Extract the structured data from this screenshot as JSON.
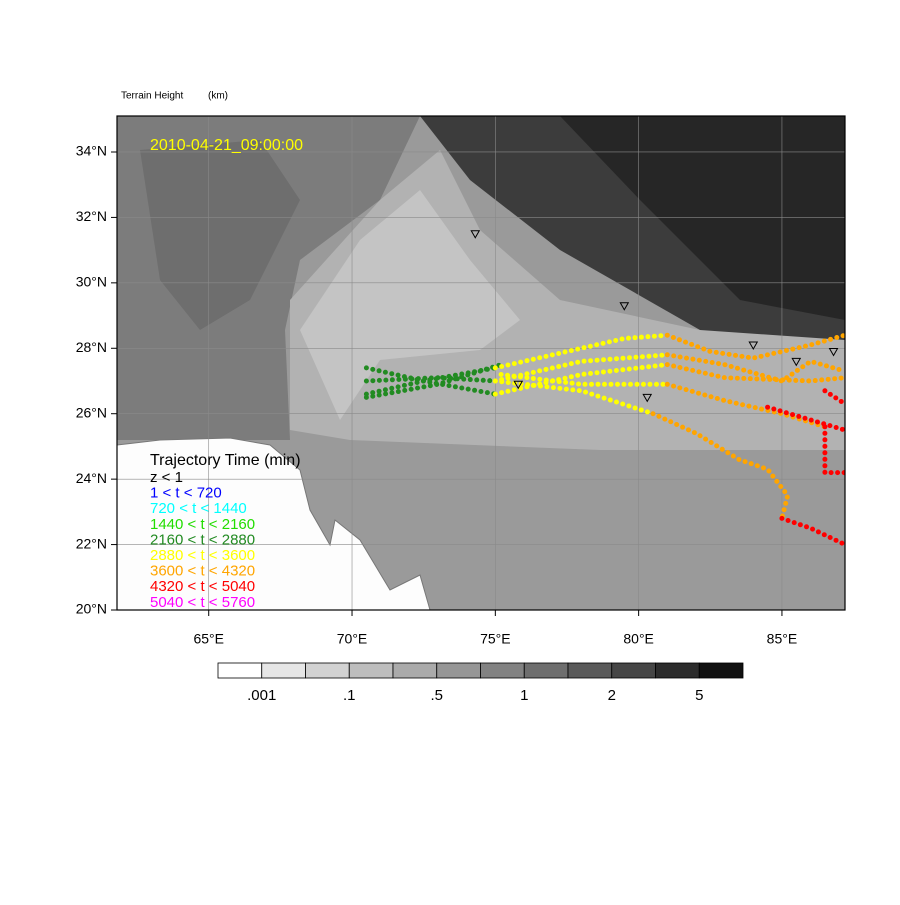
{
  "map": {
    "title": "Terrain Height",
    "units": "(km)",
    "timestamp": "2010-04-21_09:00:00",
    "lonlim": [
      61.8,
      87.2
    ],
    "latlim": [
      20,
      35.1
    ],
    "lat_ticks": [
      {
        "value": 20,
        "label": "20°N"
      },
      {
        "value": 22,
        "label": "22°N"
      },
      {
        "value": 24,
        "label": "24°N"
      },
      {
        "value": 26,
        "label": "26°N"
      },
      {
        "value": 28,
        "label": "28°N"
      },
      {
        "value": 30,
        "label": "30°N"
      },
      {
        "value": 32,
        "label": "32°N"
      },
      {
        "value": 34,
        "label": "34°N"
      }
    ],
    "lon_ticks": [
      {
        "value": 65,
        "label": "65°E"
      },
      {
        "value": 70,
        "label": "70°E"
      },
      {
        "value": 75,
        "label": "75°E"
      },
      {
        "value": 80,
        "label": "80°E"
      },
      {
        "value": 85,
        "label": "85°E"
      }
    ],
    "grid": true,
    "legend": {
      "title": "Trajectory Time (min)",
      "entries": [
        {
          "label": "z < 1",
          "color": "#000000"
        },
        {
          "label": "1 < t < 720",
          "color": "#0000ff"
        },
        {
          "label": "720 < t < 1440",
          "color": "#00ffff"
        },
        {
          "label": "1440 < t < 2160",
          "color": "#22dd00"
        },
        {
          "label": "2160 < t < 2880",
          "color": "#228b22"
        },
        {
          "label": "2880 < t < 3600",
          "color": "#ffff00"
        },
        {
          "label": "3600 < t < 4320",
          "color": "#ffa500"
        },
        {
          "label": "4320 < t < 5040",
          "color": "#ff0000"
        },
        {
          "label": "5040 < t < 5760",
          "color": "#ff00ff"
        }
      ]
    },
    "colorbar": {
      "colors": [
        "#ffffff",
        "#e6e6e6",
        "#d2d2d2",
        "#bebebe",
        "#aaaaaa",
        "#969696",
        "#828282",
        "#6e6e6e",
        "#5a5a5a",
        "#464646",
        "#2c2c2c",
        "#111111"
      ],
      "labels": [
        ".001",
        null,
        ".1",
        null,
        ".5",
        null,
        "1",
        null,
        "2",
        null,
        "5"
      ]
    },
    "stations": {
      "lon": [
        74.3,
        79.5,
        84.0,
        85.5,
        86.8,
        75.8,
        80.3
      ],
      "lat": [
        31.5,
        29.3,
        28.1,
        27.6,
        27.9,
        26.9,
        26.5
      ]
    },
    "trajectories": [
      {
        "color": "#228b22",
        "lon": [
          70.5,
          72.5,
          75.0
        ],
        "lat": [
          27.4,
          27.0,
          26.6
        ]
      },
      {
        "color": "#228b22",
        "lon": [
          70.5,
          72.5,
          75.0
        ],
        "lat": [
          26.6,
          27.0,
          27.4
        ]
      },
      {
        "color": "#228b22",
        "lon": [
          70.5,
          73.0,
          75.0
        ],
        "lat": [
          27.0,
          27.1,
          27.0
        ]
      },
      {
        "color": "#228b22",
        "lon": [
          70.5,
          73.0,
          75.2
        ],
        "lat": [
          26.5,
          26.9,
          27.5
        ]
      },
      {
        "color": "#ffff00",
        "lon": [
          75.0,
          78.0,
          79.5,
          81.0
        ],
        "lat": [
          27.4,
          28.0,
          28.3,
          28.4
        ]
      },
      {
        "color": "#ffff00",
        "lon": [
          75.0,
          78.0,
          81.0
        ],
        "lat": [
          27.0,
          27.6,
          27.8
        ]
      },
      {
        "color": "#ffff00",
        "lon": [
          75.0,
          78.0,
          81.0
        ],
        "lat": [
          26.6,
          27.2,
          27.5
        ]
      },
      {
        "color": "#ffff00",
        "lon": [
          75.0,
          78.0,
          80.5
        ],
        "lat": [
          27.0,
          26.7,
          26.0
        ]
      },
      {
        "color": "#ffff00",
        "lon": [
          75.2,
          78.0,
          81.0
        ],
        "lat": [
          27.2,
          26.9,
          26.9
        ]
      },
      {
        "color": "#ffa500",
        "lon": [
          81.0,
          82.5,
          84.0,
          86.0,
          87.2
        ],
        "lat": [
          28.4,
          27.9,
          27.7,
          28.1,
          28.4
        ]
      },
      {
        "color": "#ffa500",
        "lon": [
          81.0,
          83.0,
          85.0,
          86.0,
          87.2
        ],
        "lat": [
          27.8,
          27.5,
          27.0,
          27.6,
          27.3
        ]
      },
      {
        "color": "#ffa500",
        "lon": [
          81.0,
          83.0,
          86.0,
          87.2
        ],
        "lat": [
          27.5,
          27.1,
          27.0,
          27.1
        ]
      },
      {
        "color": "#ffa500",
        "lon": [
          80.5,
          82.0,
          83.5,
          84.5,
          85.2,
          85.0
        ],
        "lat": [
          26.0,
          25.4,
          24.6,
          24.3,
          23.5,
          22.8
        ]
      },
      {
        "color": "#ffa500",
        "lon": [
          81.0,
          83.0,
          85.0,
          86.5
        ],
        "lat": [
          26.9,
          26.4,
          26.0,
          25.6
        ]
      },
      {
        "color": "#ff0000",
        "lon": [
          85.0,
          86.0,
          87.2
        ],
        "lat": [
          22.8,
          22.5,
          22.0
        ]
      },
      {
        "color": "#ff0000",
        "lon": [
          86.5,
          86.5,
          87.2
        ],
        "lat": [
          25.6,
          24.2,
          24.2
        ]
      },
      {
        "color": "#ff0000",
        "lon": [
          86.5,
          87.2
        ],
        "lat": [
          26.7,
          26.3
        ]
      },
      {
        "color": "#ff0000",
        "lon": [
          84.5,
          87.2
        ],
        "lat": [
          26.2,
          25.5
        ]
      }
    ]
  }
}
